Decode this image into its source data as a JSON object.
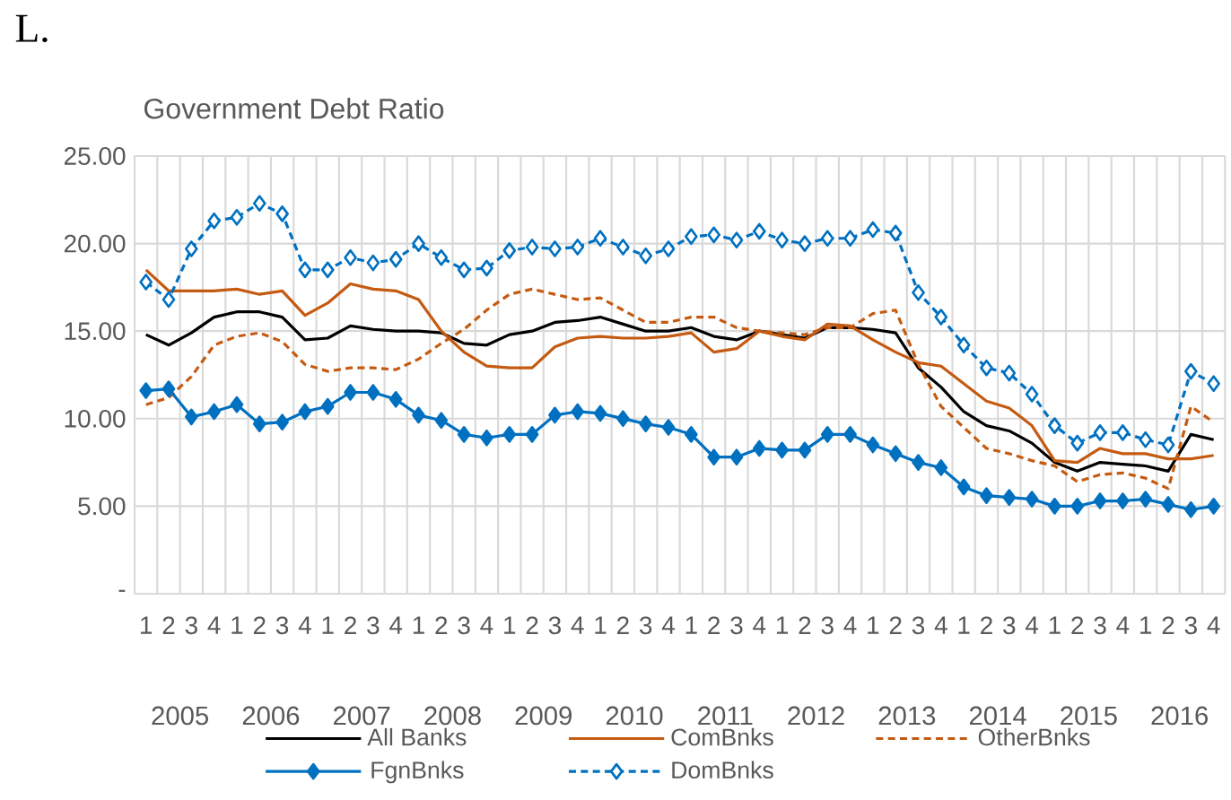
{
  "chart_data": {
    "type": "line",
    "title": "Government Debt Ratio",
    "categories": [
      "1",
      "2",
      "3",
      "4",
      "1",
      "2",
      "3",
      "4",
      "1",
      "2",
      "3",
      "4",
      "1",
      "2",
      "3",
      "4",
      "1",
      "2",
      "3",
      "4",
      "1",
      "2",
      "3",
      "4",
      "1",
      "2",
      "3",
      "4",
      "1",
      "2",
      "3",
      "4",
      "1",
      "2",
      "3",
      "4",
      "1",
      "2",
      "3",
      "4",
      "1",
      "2",
      "3",
      "4",
      "1",
      "2",
      "3",
      "4"
    ],
    "series": [
      {
        "name": "All Banks",
        "color": "#000000",
        "line_style": "solid",
        "marker": "none",
        "values": [
          14.8,
          14.2,
          14.9,
          15.8,
          16.1,
          16.1,
          15.8,
          14.5,
          14.6,
          15.3,
          15.1,
          15.0,
          15.0,
          14.9,
          14.3,
          14.2,
          14.8,
          15.0,
          15.5,
          15.6,
          15.8,
          15.4,
          15.0,
          15.0,
          15.2,
          14.7,
          14.5,
          15.0,
          14.8,
          14.6,
          15.2,
          15.2,
          15.1,
          14.9,
          12.9,
          11.8,
          10.4,
          9.6,
          9.3,
          8.6,
          7.5,
          7.0,
          7.5,
          7.4,
          7.3,
          7.0,
          9.1,
          8.8
        ]
      },
      {
        "name": "ComBnks",
        "color": "#c55a11",
        "line_style": "solid",
        "marker": "none",
        "values": [
          18.5,
          17.3,
          17.3,
          17.3,
          17.4,
          17.1,
          17.3,
          15.9,
          16.6,
          17.7,
          17.4,
          17.3,
          16.8,
          15.0,
          13.8,
          13.0,
          12.9,
          12.9,
          14.1,
          14.6,
          14.7,
          14.6,
          14.6,
          14.7,
          14.9,
          13.8,
          14.0,
          15.0,
          14.7,
          14.5,
          15.4,
          15.3,
          14.5,
          13.8,
          13.2,
          13.0,
          12.0,
          11.0,
          10.6,
          9.6,
          7.6,
          7.5,
          8.3,
          8.0,
          8.0,
          7.7,
          7.7,
          7.9
        ]
      },
      {
        "name": "OtherBnks",
        "color": "#c55a11",
        "line_style": "dashed",
        "marker": "none",
        "values": [
          10.8,
          11.2,
          12.4,
          14.2,
          14.7,
          14.9,
          14.4,
          13.1,
          12.7,
          12.9,
          12.9,
          12.8,
          13.4,
          14.3,
          15.1,
          16.2,
          17.1,
          17.4,
          17.1,
          16.8,
          16.9,
          16.2,
          15.5,
          15.5,
          15.8,
          15.8,
          15.2,
          15.0,
          14.9,
          14.8,
          15.2,
          15.2,
          16.0,
          16.2,
          13.1,
          10.7,
          9.5,
          8.3,
          8.0,
          7.6,
          7.3,
          6.4,
          6.8,
          6.9,
          6.6,
          6.0,
          10.7,
          9.8
        ]
      },
      {
        "name": "FgnBnks",
        "color": "#0070c0",
        "line_style": "solid",
        "marker": "diamond",
        "values": [
          11.6,
          11.7,
          10.1,
          10.4,
          10.8,
          9.7,
          9.8,
          10.4,
          10.7,
          11.5,
          11.5,
          11.1,
          10.2,
          9.9,
          9.1,
          8.9,
          9.1,
          9.1,
          10.2,
          10.4,
          10.3,
          10.0,
          9.7,
          9.5,
          9.1,
          7.8,
          7.8,
          8.3,
          8.2,
          8.2,
          9.1,
          9.1,
          8.5,
          8.0,
          7.5,
          7.2,
          6.1,
          5.6,
          5.5,
          5.4,
          5.0,
          5.0,
          5.3,
          5.3,
          5.4,
          5.1,
          4.8,
          5.0
        ]
      },
      {
        "name": "DomBnks",
        "color": "#0070c0",
        "line_style": "dashed",
        "marker": "diamond",
        "values": [
          17.8,
          16.8,
          19.7,
          21.3,
          21.5,
          22.3,
          21.7,
          18.5,
          18.5,
          19.2,
          18.9,
          19.1,
          20.0,
          19.2,
          18.5,
          18.6,
          19.6,
          19.8,
          19.7,
          19.8,
          20.3,
          19.8,
          19.3,
          19.7,
          20.4,
          20.5,
          20.2,
          20.7,
          20.2,
          20.0,
          20.3,
          20.3,
          20.8,
          20.6,
          17.2,
          15.8,
          14.2,
          12.9,
          12.6,
          11.4,
          9.6,
          8.6,
          9.2,
          9.2,
          8.8,
          8.5,
          12.7,
          12.0
        ]
      }
    ],
    "ylim": [
      0,
      25
    ],
    "yticks": [
      {
        "value": 0,
        "label": "-"
      },
      {
        "value": 5,
        "label": "5.00"
      },
      {
        "value": 10,
        "label": "10.00"
      },
      {
        "value": 15,
        "label": "15.00"
      },
      {
        "value": 20,
        "label": "20.00"
      },
      {
        "value": 25,
        "label": "25.00"
      }
    ],
    "grid": true,
    "legend": "bottom",
    "annotations": [
      "L.",
      "2005",
      "2006",
      "2007",
      "2008",
      "2009",
      "2010",
      "2011",
      "2012",
      "2013",
      "2014",
      "2015",
      "2016"
    ]
  }
}
